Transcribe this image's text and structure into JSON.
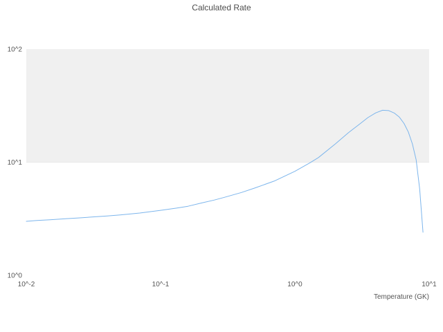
{
  "chart_data": {
    "type": "line",
    "title": "Calculated Rate",
    "xlabel": "Temperature (GK)",
    "ylabel": "",
    "x_scale": "log",
    "y_scale": "log",
    "xlim": [
      0.01,
      10
    ],
    "ylim": [
      1,
      100
    ],
    "grid": "band",
    "legend": "none",
    "x_ticks": [
      {
        "value": 0.01,
        "label": "10^-2"
      },
      {
        "value": 0.1,
        "label": "10^-1"
      },
      {
        "value": 1,
        "label": "10^0"
      },
      {
        "value": 10,
        "label": "10^1"
      }
    ],
    "y_ticks": [
      {
        "value": 1,
        "label": "10^0"
      },
      {
        "value": 10,
        "label": "10^1"
      },
      {
        "value": 100,
        "label": "10^2"
      }
    ],
    "band": {
      "from": 10,
      "to": 100,
      "color": "#f0f0f0"
    },
    "line_color": "#7cb5ec",
    "series": [
      {
        "name": "calculated-rate",
        "x": [
          0.01,
          0.012,
          0.015,
          0.02,
          0.025,
          0.03,
          0.04,
          0.05,
          0.07,
          0.1,
          0.13,
          0.16,
          0.2,
          0.25,
          0.3,
          0.4,
          0.5,
          0.7,
          1.0,
          1.3,
          1.5,
          2.0,
          2.5,
          3.0,
          3.5,
          4.0,
          4.5,
          5.0,
          5.5,
          6.0,
          6.5,
          7.0,
          7.5,
          8.0,
          8.5,
          9.0
        ],
        "y": [
          3.0,
          3.05,
          3.1,
          3.17,
          3.22,
          3.27,
          3.35,
          3.42,
          3.55,
          3.75,
          3.92,
          4.08,
          4.35,
          4.62,
          4.9,
          5.4,
          5.9,
          6.8,
          8.3,
          9.9,
          11.0,
          14.5,
          18.2,
          21.5,
          24.8,
          27.3,
          28.8,
          28.6,
          27.2,
          25.0,
          22.0,
          18.5,
          14.5,
          10.5,
          5.8,
          2.4
        ]
      }
    ]
  }
}
